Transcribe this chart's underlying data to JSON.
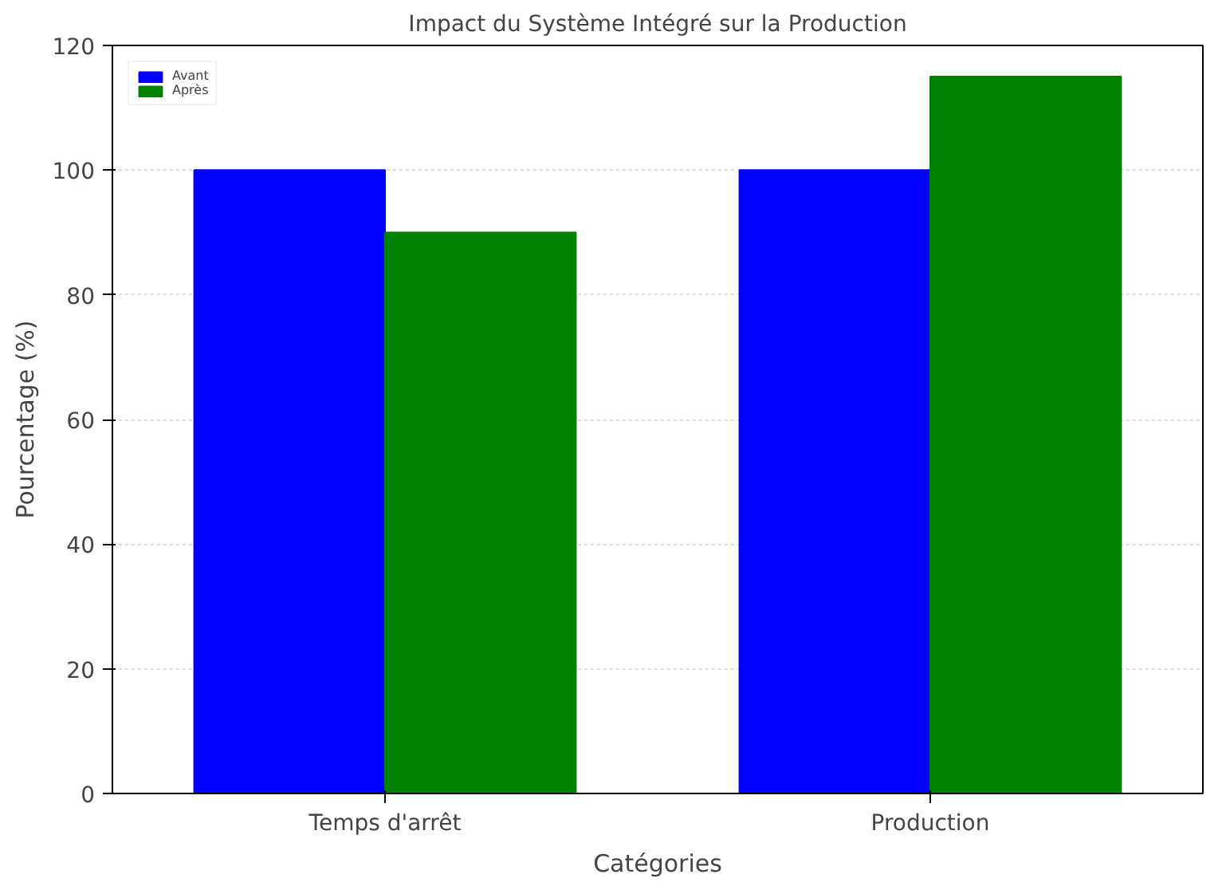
{
  "chart_data": {
    "type": "bar",
    "title": "Impact du Système Intégré sur la Production",
    "xlabel": "Catégories",
    "ylabel": "Pourcentage (%)",
    "categories": [
      "Temps d'arrêt",
      "Production"
    ],
    "series": [
      {
        "name": "Avant",
        "color": "#0000ff",
        "values": [
          100,
          100
        ]
      },
      {
        "name": "Après",
        "color": "#008000",
        "values": [
          90,
          115
        ]
      }
    ],
    "ylim": [
      0,
      120
    ],
    "yticks": [
      0,
      20,
      40,
      60,
      80,
      100,
      120
    ],
    "grid": "y",
    "legend": "top left"
  }
}
